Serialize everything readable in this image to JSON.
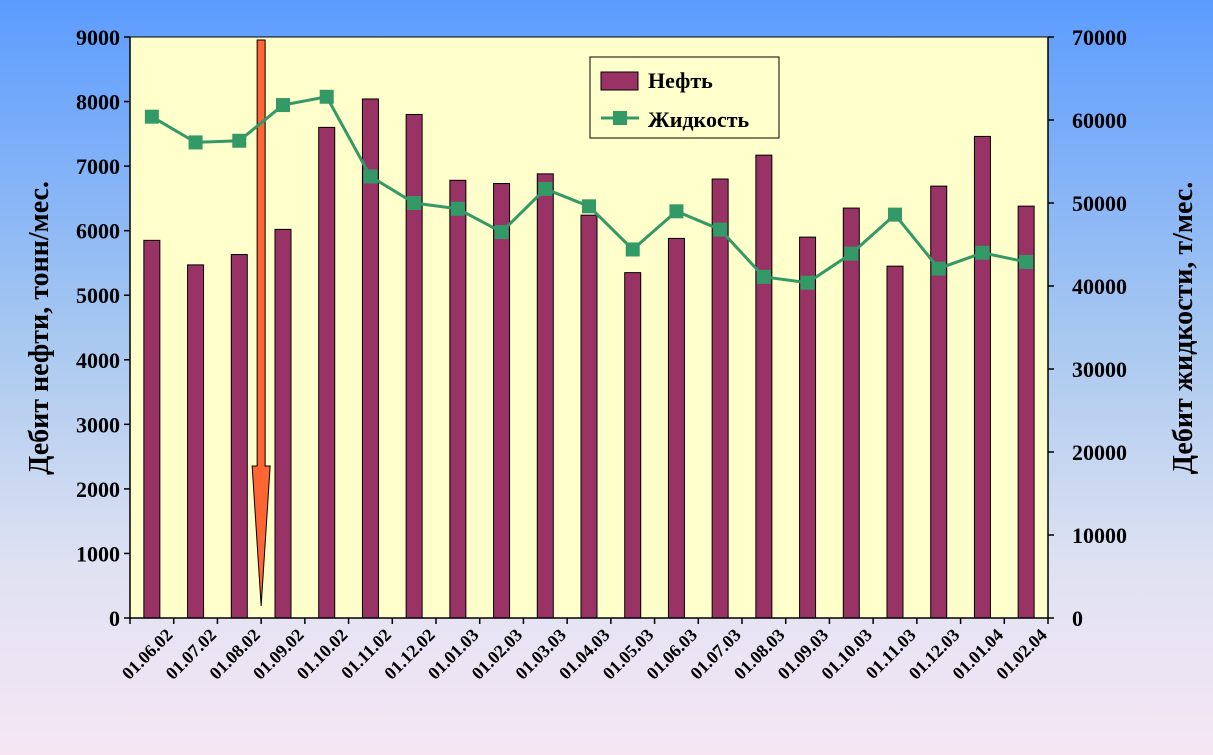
{
  "chart_data": {
    "type": "bar",
    "categories": [
      "01.06.02",
      "01.07.02",
      "01.08.02",
      "01.09.02",
      "01.10.02",
      "01.11.02",
      "01.12.02",
      "01.01.03",
      "01.02.03",
      "01.03.03",
      "01.04.03",
      "01.05.03",
      "01.06.03",
      "01.07.03",
      "01.08.03",
      "01.09.03",
      "01.10.03",
      "01.11.03",
      "01.12.03",
      "01.01.04",
      "01.02.04"
    ],
    "series": [
      {
        "name": "Нефть",
        "type": "bar",
        "axis": "left",
        "color": "#993366",
        "values": [
          5850,
          5470,
          5630,
          6020,
          7600,
          8040,
          7800,
          6780,
          6730,
          6880,
          6240,
          5350,
          5880,
          6800,
          7170,
          5900,
          6350,
          5450,
          6690,
          7460,
          6380
        ]
      },
      {
        "name": "Жидкость",
        "type": "line",
        "axis": "right",
        "color": "#339966",
        "values": [
          60400,
          57300,
          57500,
          61800,
          62800,
          53200,
          50000,
          49300,
          46500,
          51700,
          49600,
          44400,
          49000,
          46800,
          41100,
          40400,
          43900,
          48600,
          42100,
          44000,
          42900
        ]
      }
    ],
    "ylabel": "Дебит нефти, тонн/мес.",
    "ylabel_right": "Дебит жидкости, т/мес.",
    "ylim": [
      0,
      9000
    ],
    "ylim_right": [
      0,
      70000
    ],
    "yticks": [
      "0",
      "1000",
      "2000",
      "3000",
      "4000",
      "5000",
      "6000",
      "7000",
      "8000",
      "9000"
    ],
    "yticks_right": [
      "0",
      "10000",
      "20000",
      "30000",
      "40000",
      "50000",
      "60000",
      "70000"
    ],
    "plot_background": "#ffffcc",
    "arrow_color": "#ff6633",
    "arrow_at": "01.09.02",
    "legend_position": "top-center",
    "grid": false
  }
}
